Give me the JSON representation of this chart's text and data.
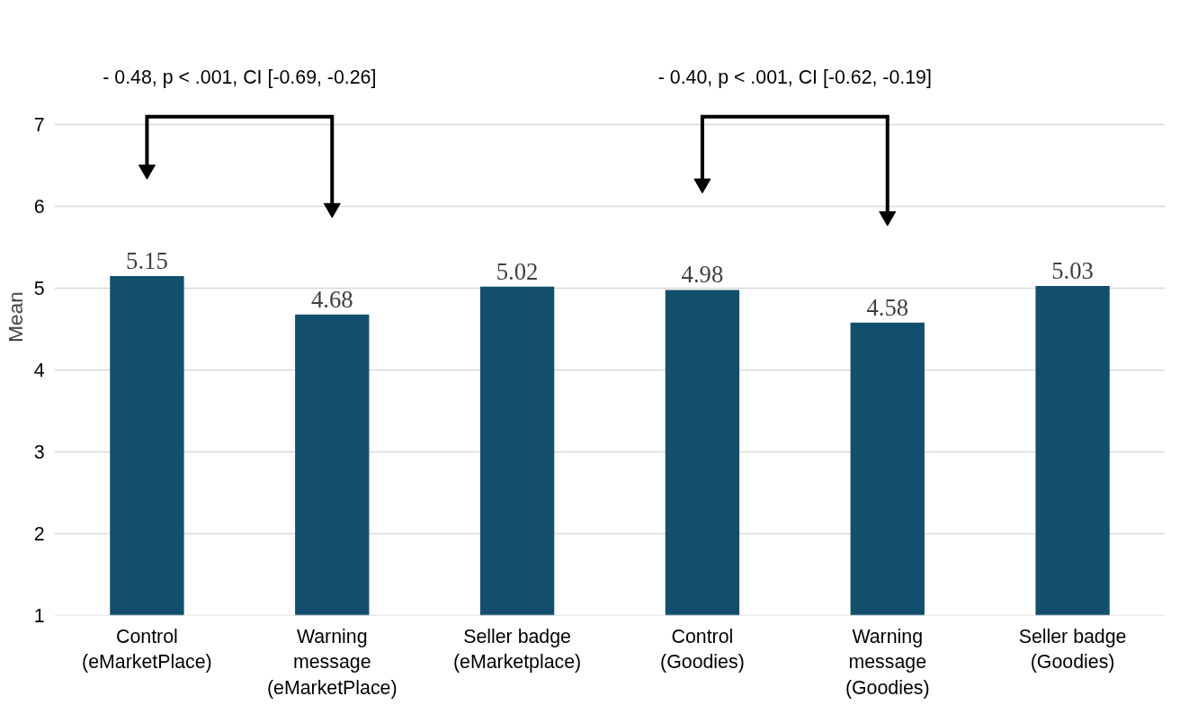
{
  "chart_data": {
    "type": "bar",
    "ylabel": "Mean",
    "categories": [
      "Control\n(eMarketPlace)",
      "Warning\nmessage\n(eMarketPlace)",
      "Seller badge\n(eMarketplace)",
      "Control\n(Goodies)",
      "Warning\nmessage\n(Goodies)",
      "Seller badge\n(Goodies)"
    ],
    "values": [
      5.15,
      4.68,
      5.02,
      4.98,
      4.58,
      5.03
    ],
    "color": "#124f6c",
    "ylim": [
      1,
      7
    ],
    "yticks": [
      1,
      2,
      3,
      4,
      5,
      6,
      7
    ],
    "grid": "y",
    "data_labels": true,
    "annotations": [
      "- 0.48, p < .001, CI [-0.69, -0.26]",
      "- 0.40, p < .001, CI [-0.62, -0.19]"
    ]
  }
}
